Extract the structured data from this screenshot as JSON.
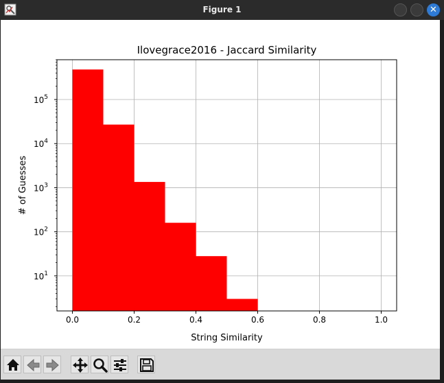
{
  "window": {
    "title": "Figure 1",
    "close_glyph": "✕"
  },
  "toolbar": {
    "buttons": [
      {
        "name": "home-icon"
      },
      {
        "name": "back-icon"
      },
      {
        "name": "forward-icon"
      },
      {
        "name": "pan-icon"
      },
      {
        "name": "zoom-icon"
      },
      {
        "name": "configure-subplots-icon"
      },
      {
        "name": "save-icon"
      }
    ]
  },
  "chart_data": {
    "type": "bar",
    "title": "Ilovegrace2016 - Jaccard Similarity",
    "xlabel": "String Similarity",
    "ylabel": "# of Guesses",
    "xlim": [
      -0.05,
      1.05
    ],
    "ylim": [
      1.6,
      800000
    ],
    "yscale": "log",
    "grid": true,
    "color": "#ff0000",
    "bins": [
      {
        "x0": 0.0,
        "x1": 0.1,
        "value": 480000
      },
      {
        "x0": 0.1,
        "x1": 0.2,
        "value": 27000
      },
      {
        "x0": 0.2,
        "x1": 0.3,
        "value": 1350
      },
      {
        "x0": 0.3,
        "x1": 0.4,
        "value": 160
      },
      {
        "x0": 0.4,
        "x1": 0.5,
        "value": 28
      },
      {
        "x0": 0.5,
        "x1": 0.6,
        "value": 3
      }
    ],
    "xticks": [
      {
        "value": 0.0,
        "label": "0.0"
      },
      {
        "value": 0.2,
        "label": "0.2"
      },
      {
        "value": 0.4,
        "label": "0.4"
      },
      {
        "value": 0.6,
        "label": "0.6"
      },
      {
        "value": 0.8,
        "label": "0.8"
      },
      {
        "value": 1.0,
        "label": "1.0"
      }
    ],
    "yticks": [
      {
        "value": 10,
        "base": "10",
        "exp": "1"
      },
      {
        "value": 100,
        "base": "10",
        "exp": "2"
      },
      {
        "value": 1000,
        "base": "10",
        "exp": "3"
      },
      {
        "value": 10000,
        "base": "10",
        "exp": "4"
      },
      {
        "value": 100000,
        "base": "10",
        "exp": "5"
      }
    ]
  }
}
